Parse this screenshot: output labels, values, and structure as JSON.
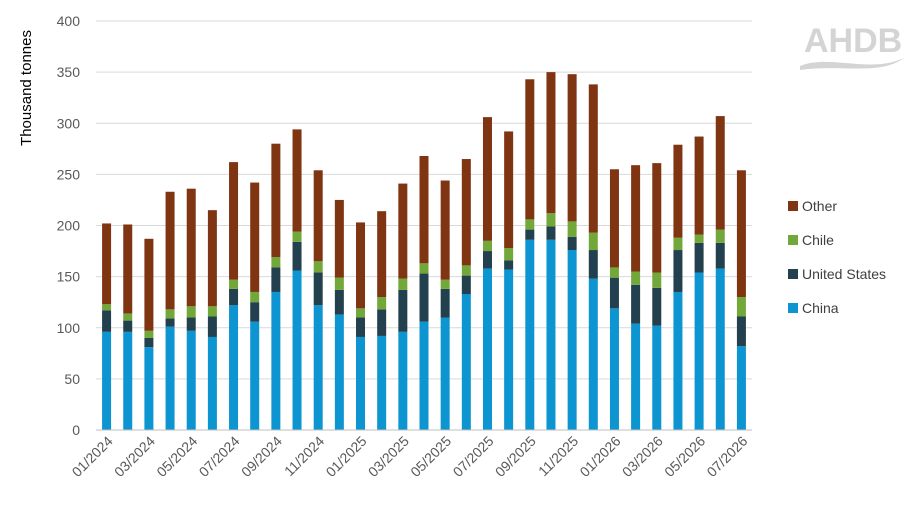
{
  "logo": {
    "text": "AHDB",
    "color": "#d4d4d4"
  },
  "chart_data": {
    "type": "bar",
    "stacked": true,
    "ylabel": "Thousand tonnes",
    "ylim": [
      0,
      400
    ],
    "ytick_step": 50,
    "grid": true,
    "legend_position": "right",
    "categories": [
      "01/2024",
      "02/2024",
      "03/2024",
      "04/2024",
      "05/2024",
      "06/2024",
      "07/2024",
      "08/2024",
      "09/2024",
      "10/2024",
      "11/2024",
      "12/2024",
      "01/2025",
      "02/2025",
      "03/2025",
      "04/2025",
      "05/2025",
      "06/2025",
      "07/2025",
      "08/2025",
      "09/2025",
      "10/2025",
      "11/2025",
      "12/2025",
      "01/2026",
      "02/2026",
      "03/2026",
      "04/2026",
      "05/2026",
      "06/2026",
      "07/2026"
    ],
    "x_tick_labels": [
      "01/2024",
      "03/2024",
      "05/2024",
      "07/2024",
      "09/2024",
      "11/2024",
      "01/2025",
      "03/2025",
      "05/2025",
      "07/2025",
      "09/2025",
      "11/2025",
      "01/2026",
      "03/2026",
      "05/2026",
      "07/2026"
    ],
    "series": [
      {
        "name": "China",
        "color": "#0c95d0",
        "values": [
          96,
          96,
          81,
          101,
          97,
          91,
          122,
          106,
          135,
          156,
          122,
          113,
          91,
          92,
          96,
          106,
          110,
          133,
          158,
          157,
          186,
          186,
          176,
          148,
          119,
          104,
          102,
          135,
          154,
          158,
          82
        ]
      },
      {
        "name": "United States",
        "color": "#22404e",
        "values": [
          21,
          11,
          9,
          8,
          13,
          20,
          16,
          19,
          24,
          28,
          32,
          24,
          19,
          26,
          41,
          47,
          28,
          18,
          17,
          9,
          10,
          13,
          13,
          28,
          30,
          38,
          37,
          41,
          29,
          25,
          29
        ]
      },
      {
        "name": "Chile",
        "color": "#72a83a",
        "values": [
          6,
          7,
          7,
          9,
          11,
          10,
          9,
          10,
          10,
          10,
          11,
          12,
          9,
          12,
          11,
          10,
          9,
          10,
          10,
          12,
          10,
          13,
          15,
          17,
          10,
          13,
          15,
          12,
          8,
          13,
          19
        ]
      },
      {
        "name": "Other",
        "color": "#7f3512",
        "values": [
          79,
          87,
          90,
          115,
          115,
          94,
          115,
          107,
          111,
          100,
          89,
          76,
          84,
          84,
          93,
          105,
          97,
          104,
          121,
          114,
          137,
          138,
          144,
          145,
          96,
          104,
          107,
          91,
          96,
          111,
          124
        ]
      }
    ]
  }
}
